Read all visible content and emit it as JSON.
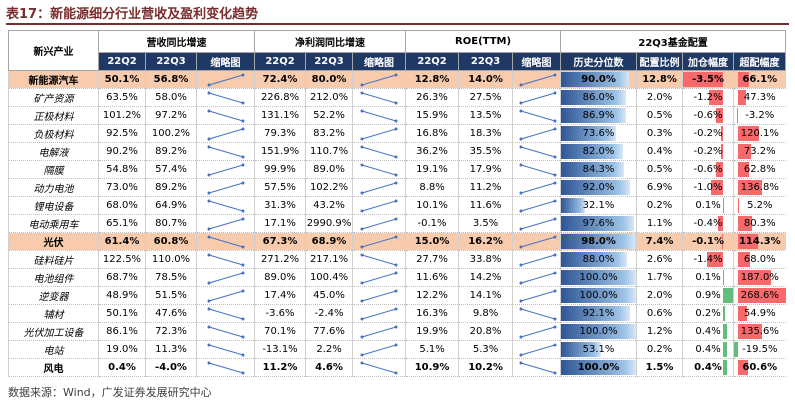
{
  "title": "表17：新能源细分行业营收及盈利变化趋势",
  "table": {
    "header": {
      "first": "新兴产业",
      "groups": [
        {
          "name": "营收同比增速",
          "columns": [
            "22Q2",
            "22Q3",
            "缩略图"
          ]
        },
        {
          "name": "净利润同比增速",
          "columns": [
            "22Q2",
            "22Q3",
            "缩略图"
          ]
        },
        {
          "name": "ROE(TTM)",
          "columns": [
            "22Q2",
            "22Q3",
            "缩略图"
          ]
        },
        {
          "name": "22Q3基金配置",
          "columns": [
            "历史分位数",
            "配置比例",
            "加仓幅度",
            "超配幅度"
          ]
        }
      ]
    },
    "highlight_rows": [
      0,
      9
    ],
    "bold_rows": [
      0,
      9,
      16
    ],
    "rows": [
      {
        "name": "新能源汽车",
        "cells": [
          "50.1%",
          "56.8%",
          "72.4%",
          "80.0%",
          "12.8%",
          "14.0%",
          "90.0%",
          "12.8%",
          "-3.5%",
          "66.1%"
        ]
      },
      {
        "name": "矿产资源",
        "cells": [
          "63.5%",
          "58.0%",
          "226.8%",
          "212.0%",
          "26.3%",
          "27.5%",
          "86.0%",
          "2.0%",
          "-1.2%",
          "47.3%"
        ]
      },
      {
        "name": "正极材料",
        "cells": [
          "101.2%",
          "97.2%",
          "131.1%",
          "52.2%",
          "15.9%",
          "13.5%",
          "86.9%",
          "0.5%",
          "-0.6%",
          "-3.2%"
        ]
      },
      {
        "name": "负极材料",
        "cells": [
          "92.5%",
          "100.2%",
          "79.3%",
          "83.2%",
          "16.8%",
          "18.3%",
          "73.6%",
          "0.3%",
          "-0.2%",
          "120.1%"
        ]
      },
      {
        "name": "电解液",
        "cells": [
          "90.2%",
          "89.2%",
          "151.9%",
          "110.7%",
          "36.2%",
          "35.5%",
          "82.0%",
          "0.4%",
          "-0.2%",
          "73.2%"
        ]
      },
      {
        "name": "隔膜",
        "cells": [
          "54.8%",
          "57.4%",
          "99.9%",
          "89.0%",
          "19.1%",
          "17.9%",
          "84.3%",
          "0.5%",
          "-0.6%",
          "62.8%"
        ]
      },
      {
        "name": "动力电池",
        "cells": [
          "73.0%",
          "89.2%",
          "57.5%",
          "102.2%",
          "8.8%",
          "11.2%",
          "92.0%",
          "6.9%",
          "-1.0%",
          "136.8%"
        ]
      },
      {
        "name": "锂电设备",
        "cells": [
          "68.0%",
          "64.9%",
          "31.3%",
          "43.2%",
          "10.1%",
          "11.6%",
          "32.1%",
          "0.2%",
          "0.1%",
          "5.2%"
        ]
      },
      {
        "name": "电动乘用车",
        "cells": [
          "65.1%",
          "80.7%",
          "17.1%",
          "2990.9%",
          "-0.1%",
          "3.5%",
          "97.6%",
          "1.1%",
          "-0.4%",
          "80.3%"
        ]
      },
      {
        "name": "光伏",
        "cells": [
          "61.4%",
          "60.8%",
          "67.3%",
          "68.9%",
          "15.0%",
          "16.2%",
          "98.0%",
          "7.4%",
          "-0.1%",
          "114.3%"
        ]
      },
      {
        "name": "硅料硅片",
        "cells": [
          "122.5%",
          "110.0%",
          "271.2%",
          "217.1%",
          "27.7%",
          "33.8%",
          "88.0%",
          "2.6%",
          "-1.4%",
          "68.0%"
        ]
      },
      {
        "name": "电池组件",
        "cells": [
          "68.7%",
          "78.5%",
          "89.0%",
          "100.4%",
          "11.6%",
          "14.2%",
          "100.0%",
          "1.7%",
          "0.1%",
          "187.0%"
        ]
      },
      {
        "name": "逆变器",
        "cells": [
          "48.9%",
          "51.5%",
          "17.4%",
          "45.0%",
          "12.2%",
          "14.1%",
          "100.0%",
          "2.0%",
          "0.9%",
          "268.6%"
        ]
      },
      {
        "name": "辅材",
        "cells": [
          "50.1%",
          "47.6%",
          "-3.6%",
          "-2.4%",
          "16.3%",
          "9.8%",
          "92.1%",
          "0.6%",
          "0.2%",
          "54.9%"
        ]
      },
      {
        "name": "光伏加工设备",
        "cells": [
          "86.1%",
          "72.3%",
          "70.1%",
          "77.6%",
          "19.9%",
          "20.8%",
          "100.0%",
          "1.2%",
          "0.4%",
          "135.6%"
        ]
      },
      {
        "name": "电站",
        "cells": [
          "19.0%",
          "11.3%",
          "-13.1%",
          "2.2%",
          "5.1%",
          "5.3%",
          "53.1%",
          "0.2%",
          "0.4%",
          "-19.5%"
        ]
      },
      {
        "name": "风电",
        "cells": [
          "0.4%",
          "-4.0%",
          "11.2%",
          "4.6%",
          "10.9%",
          "10.2%",
          "100.0%",
          "1.5%",
          "0.4%",
          "60.6%"
        ]
      }
    ]
  },
  "footer": "数据来源：Wind，广发证券发展研究中心"
}
